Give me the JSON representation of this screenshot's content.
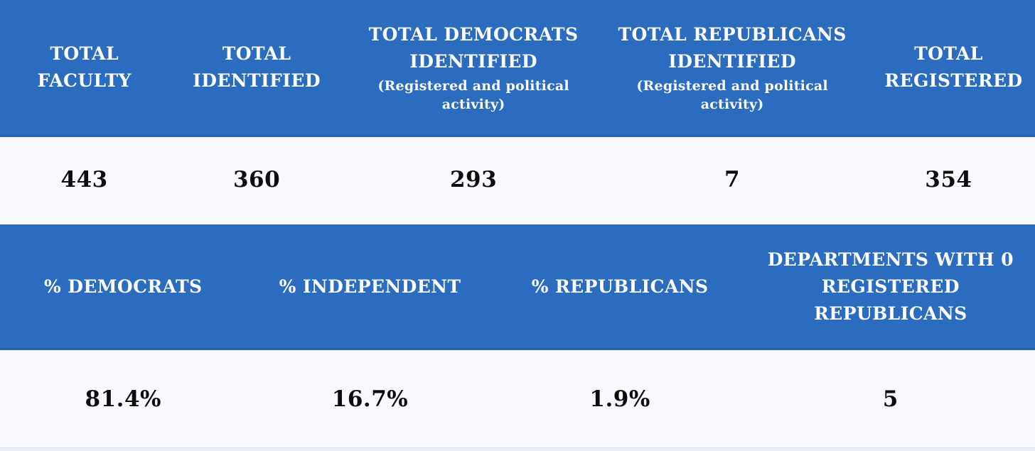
{
  "theme": {
    "header_bg": "#2c6cbe",
    "header_border": "#2a64ad",
    "header_text": "#fbfcfe",
    "value_bg": "#f7f9fd",
    "value_text": "#0d0d0d",
    "footer_strip": "#eaeef5"
  },
  "table1": {
    "columns": [
      {
        "label": "TOTAL FACULTY",
        "sublabel": "",
        "value": "443"
      },
      {
        "label": "TOTAL IDENTIFIED",
        "sublabel": "",
        "value": "360"
      },
      {
        "label": "TOTAL DEMOCRATS IDENTIFIED",
        "sublabel": "(Registered and political activity)",
        "value": "293"
      },
      {
        "label": "TOTAL REPUBLICANS IDENTIFIED",
        "sublabel": "(Registered and political activity)",
        "value": "7"
      },
      {
        "label": "TOTAL REGISTERED",
        "sublabel": "",
        "value": "354"
      }
    ]
  },
  "table2": {
    "columns": [
      {
        "label": "% DEMOCRATS",
        "value": "81.4%"
      },
      {
        "label": "% INDEPENDENT",
        "value": "16.7%"
      },
      {
        "label": "% REPUBLICANS",
        "value": "1.9%"
      },
      {
        "label": "DEPARTMENTS WITH 0 REGISTERED REPUBLICANS",
        "value": "5"
      }
    ]
  },
  "chart_data": {
    "type": "table",
    "tables": [
      {
        "headers": [
          "TOTAL FACULTY",
          "TOTAL IDENTIFIED",
          "TOTAL DEMOCRATS IDENTIFIED",
          "TOTAL REPUBLICANS IDENTIFIED",
          "TOTAL REGISTERED"
        ],
        "subheaders": [
          "",
          "",
          "(Registered and political activity)",
          "(Registered and political activity)",
          ""
        ],
        "values": [
          443,
          360,
          293,
          7,
          354
        ]
      },
      {
        "headers": [
          "% DEMOCRATS",
          "% INDEPENDENT",
          "% REPUBLICANS",
          "DEPARTMENTS WITH 0 REGISTERED REPUBLICANS"
        ],
        "values": [
          "81.4%",
          "16.7%",
          "1.9%",
          5
        ]
      }
    ]
  }
}
